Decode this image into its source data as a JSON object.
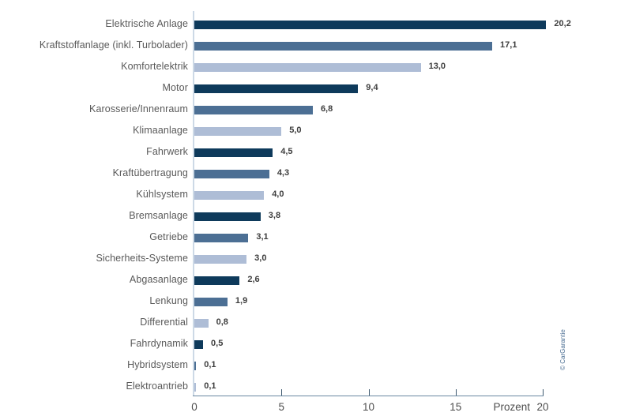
{
  "watermark": "© CarGarantie",
  "chart_data": {
    "type": "bar",
    "orientation": "horizontal",
    "title": "",
    "xlabel": "Prozent",
    "ylabel": "",
    "xlim": [
      0,
      20
    ],
    "xticks": [
      0,
      5,
      10,
      15,
      20
    ],
    "xtick_labels": [
      "0",
      "5",
      "10",
      "15",
      "20"
    ],
    "grid": false,
    "legend": false,
    "bar_colors_cycle": [
      "#0e3a5b",
      "#4c6f94",
      "#aebdd6"
    ],
    "axis_line_color": "#6a87a0",
    "y_axis_line_color": "#cdd9e6",
    "items": [
      {
        "label": "Elektrische Anlage",
        "value": 20.2,
        "display": "20,2"
      },
      {
        "label": "Kraftstoffanlage (inkl. Turbolader)",
        "value": 17.1,
        "display": "17,1"
      },
      {
        "label": "Komfortelektrik",
        "value": 13.0,
        "display": "13,0"
      },
      {
        "label": "Motor",
        "value": 9.4,
        "display": "9,4"
      },
      {
        "label": "Karosserie/Innenraum",
        "value": 6.8,
        "display": "6,8"
      },
      {
        "label": "Klimaanlage",
        "value": 5.0,
        "display": "5,0"
      },
      {
        "label": "Fahrwerk",
        "value": 4.5,
        "display": "4,5"
      },
      {
        "label": "Kraftübertragung",
        "value": 4.3,
        "display": "4,3"
      },
      {
        "label": "Kühlsystem",
        "value": 4.0,
        "display": "4,0"
      },
      {
        "label": "Bremsanlage",
        "value": 3.8,
        "display": "3,8"
      },
      {
        "label": "Getriebe",
        "value": 3.1,
        "display": "3,1"
      },
      {
        "label": "Sicherheits-Systeme",
        "value": 3.0,
        "display": "3,0"
      },
      {
        "label": "Abgasanlage",
        "value": 2.6,
        "display": "2,6"
      },
      {
        "label": "Lenkung",
        "value": 1.9,
        "display": "1,9"
      },
      {
        "label": "Differential",
        "value": 0.8,
        "display": "0,8"
      },
      {
        "label": "Fahrdynamik",
        "value": 0.5,
        "display": "0,5"
      },
      {
        "label": "Hybridsystem",
        "value": 0.1,
        "display": "0,1"
      },
      {
        "label": "Elektroantrieb",
        "value": 0.1,
        "display": "0,1"
      }
    ]
  }
}
